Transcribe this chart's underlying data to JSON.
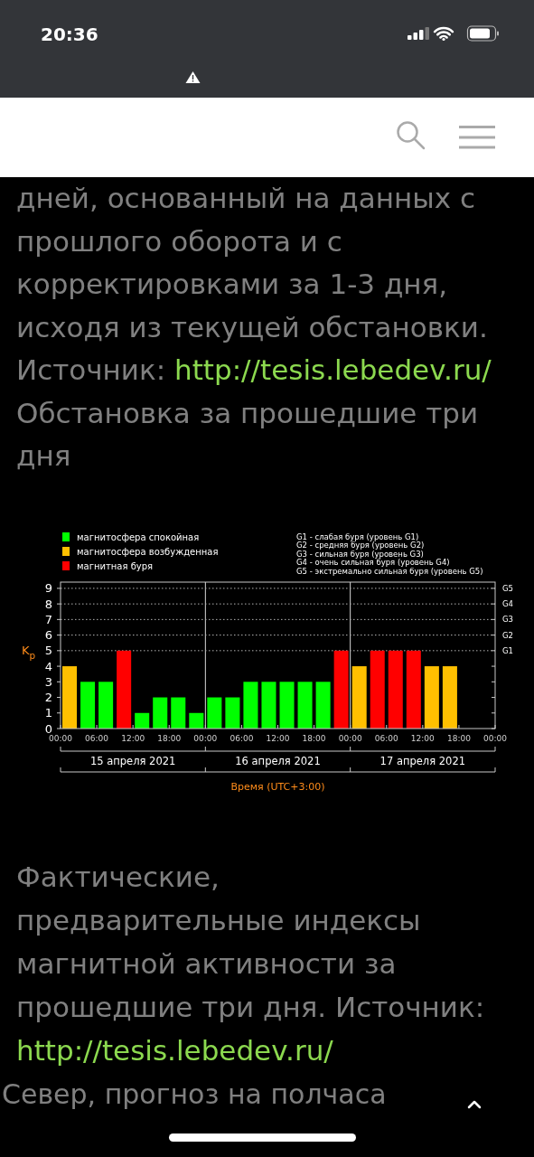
{
  "chart_data": {
    "type": "bar",
    "title": "Обстановка за прошедшие три дня",
    "xlabel": "Время (UTC+3:00)",
    "ylabel": "K$_{p}$",
    "x": [
      "2021-04-15T01:30",
      "2021-04-15T04:30",
      "2021-04-15T07:30",
      "2021-04-15T10:30",
      "2021-04-15T13:30",
      "2021-04-15T16:30",
      "2021-04-15T19:30",
      "2021-04-15T22:30",
      "2021-04-16T01:30",
      "2021-04-16T04:30",
      "2021-04-16T07:30",
      "2021-04-16T10:30",
      "2021-04-16T13:30",
      "2021-04-16T16:30",
      "2021-04-16T19:30",
      "2021-04-16T22:30",
      "2021-04-17T01:30",
      "2021-04-17T04:30",
      "2021-04-17T07:30",
      "2021-04-17T10:30",
      "2021-04-17T13:30",
      "2021-04-17T16:30"
    ],
    "series": [
      {
        "name": "магнитосфера спокойная",
        "color": "#00ff00",
        "values": [
          null,
          3,
          3,
          null,
          1,
          2,
          2,
          1,
          2,
          2,
          3,
          3,
          3,
          3,
          3,
          null,
          null,
          null,
          null,
          null,
          null,
          null
        ]
      },
      {
        "name": "магнитосфера возбужденная",
        "color": "#ffc000",
        "values": [
          4,
          null,
          null,
          null,
          null,
          null,
          null,
          null,
          null,
          null,
          null,
          null,
          null,
          null,
          null,
          null,
          4,
          null,
          null,
          null,
          4,
          4
        ]
      },
      {
        "name": "магнитная буря",
        "color": "#ff0000",
        "values": [
          null,
          null,
          null,
          5,
          null,
          null,
          null,
          null,
          null,
          null,
          null,
          null,
          null,
          null,
          null,
          5,
          null,
          5,
          5,
          5,
          null,
          null
        ]
      }
    ],
    "xlim": [
      "2021-04-15T00:00",
      "2021-04-18T00:00"
    ],
    "xticks": [
      {
        "value": "2021-04-15T00:00",
        "label": "00:00"
      },
      {
        "value": "2021-04-15T06:00",
        "label": "06:00"
      },
      {
        "value": "2021-04-15T12:00",
        "label": "12:00"
      },
      {
        "value": "2021-04-15T18:00",
        "label": "18:00"
      },
      {
        "value": "2021-04-16T00:00",
        "label": "00:00"
      },
      {
        "value": "2021-04-16T06:00",
        "label": "06:00"
      },
      {
        "value": "2021-04-16T12:00",
        "label": "12:00"
      },
      {
        "value": "2021-04-16T18:00",
        "label": "18:00"
      },
      {
        "value": "2021-04-17T00:00",
        "label": "00:00"
      },
      {
        "value": "2021-04-17T06:00",
        "label": "06:00"
      },
      {
        "value": "2021-04-17T12:00",
        "label": "12:00"
      },
      {
        "value": "2021-04-17T18:00",
        "label": "18:00"
      },
      {
        "value": "2021-04-18T00:00",
        "label": "00:00"
      }
    ],
    "ylim": [
      0,
      9.4
    ],
    "yticks": [
      0,
      1,
      2,
      3,
      4,
      5,
      6,
      7,
      8,
      9
    ],
    "ref_lines": [
      {
        "axis": "x",
        "value": "2021-04-16T00:00",
        "color": "#d9d9d9"
      },
      {
        "axis": "x",
        "value": "2021-04-17T00:00",
        "color": "#d9d9d9"
      },
      {
        "axis": "y",
        "value": 5,
        "label": "G1",
        "color": "#b4b4b4",
        "line_style": "dotted"
      },
      {
        "axis": "y",
        "value": 6,
        "label": "G2",
        "color": "#b4b4b4",
        "line_style": "dotted"
      },
      {
        "axis": "y",
        "value": 7,
        "label": "G3",
        "color": "#b4b4b4",
        "line_style": "dotted"
      },
      {
        "axis": "y",
        "value": 8,
        "label": "G4",
        "color": "#b4b4b4",
        "line_style": "dotted"
      },
      {
        "axis": "y",
        "value": 9,
        "label": "G5",
        "color": "#b4b4b4",
        "line_style": "dotted"
      }
    ],
    "legend": "top left",
    "annotations": [
      "20:36",
      "дней, основанный на данных с прошлого оборота и с корректировками за 1-3 дня, исходя из текущей обстановки.",
      "Источник:",
      "http://tesis.lebedev.ru/",
      "G1 - слабая буря (уровень G1)",
      "G2 - средняя буря (уровень G2)",
      "G3 - сильная буря (уровень G3)",
      "G4 - очень сильная буря (уровень G4)",
      "G5 - экстремально сильная буря (уровень G5)",
      "15 апреля 2021",
      "16 апреля 2021",
      "17 апреля 2021",
      "Фактические, предварительные индексы магнитной активности за прошедшие три дня. Источник:",
      "http://tesis.lebedev.ru/",
      "Север, прогноз на полчаса"
    ]
  }
}
